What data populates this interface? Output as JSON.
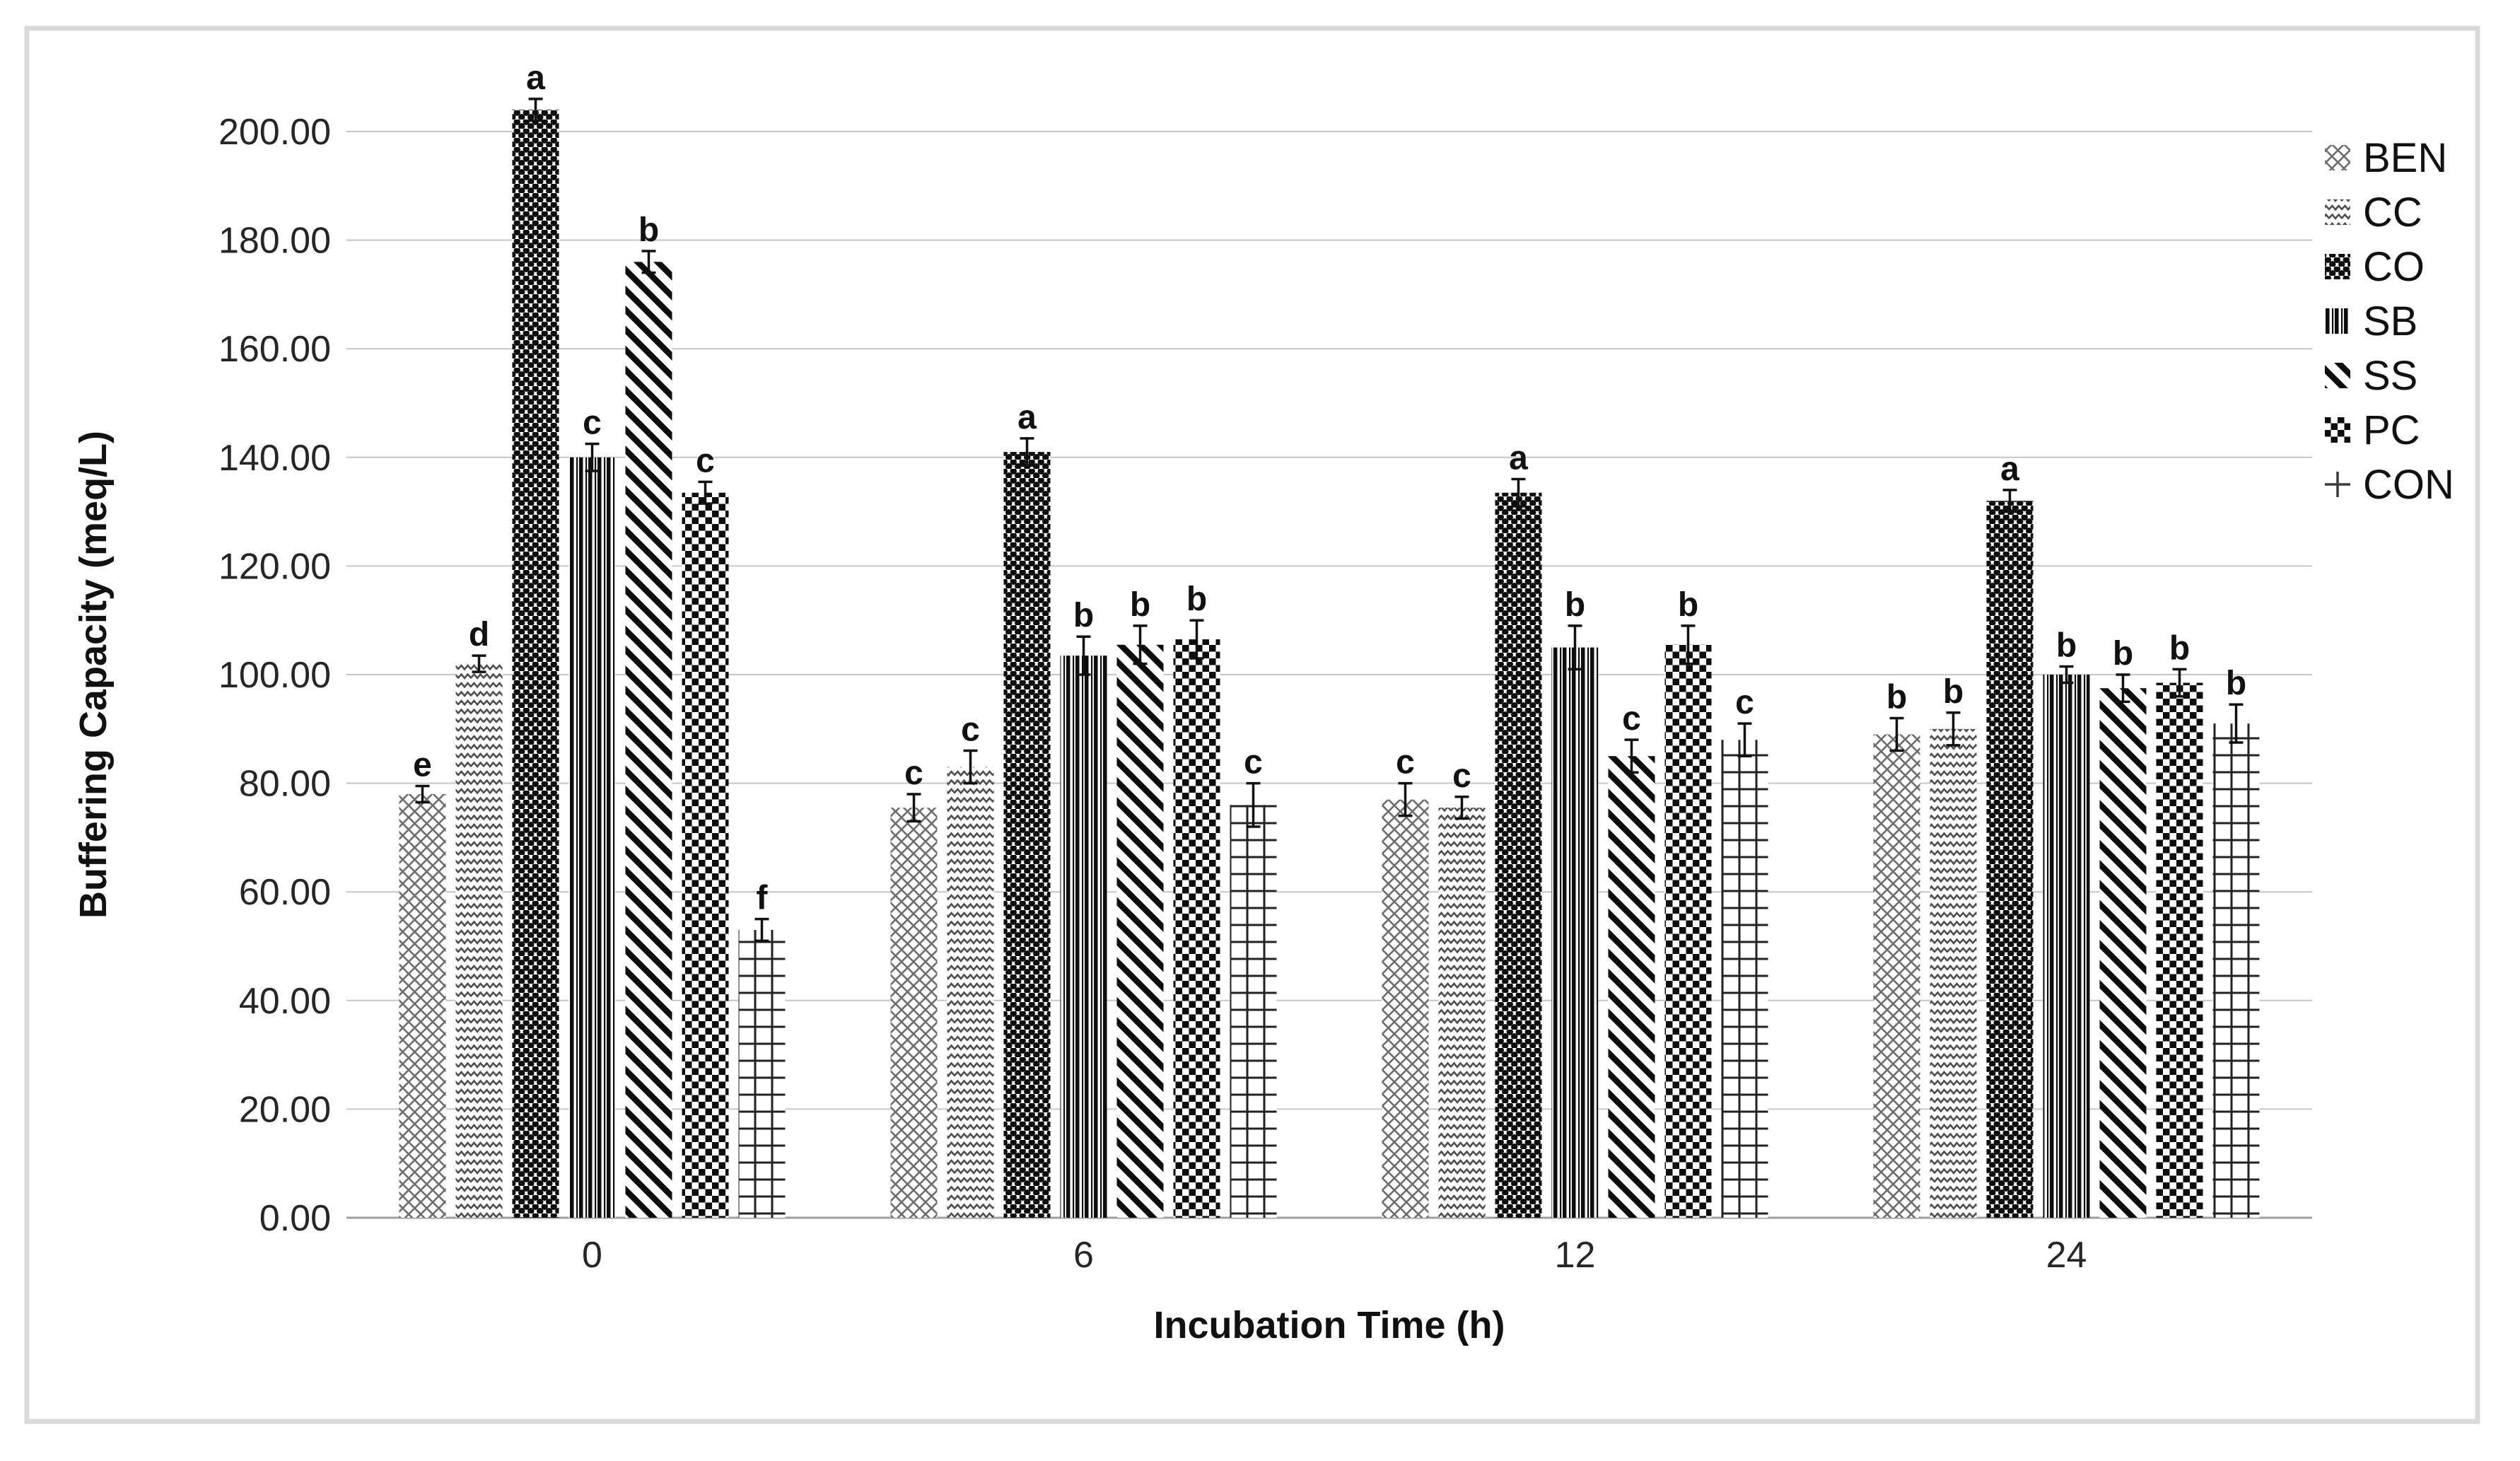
{
  "figure": {
    "border_color": "#d9d9d9",
    "background": "#ffffff"
  },
  "colors": {
    "pattern_ink": "#0d0d0d",
    "gray_pattern_ink": "#6e6e6e",
    "grid_line": "#c6c6c6",
    "axis_line": "#9e9e9e",
    "text": "#1a1a1a"
  },
  "chart_data": {
    "type": "bar",
    "title": "",
    "xlabel": "Incubation Time (h)",
    "ylabel": "Buffering Capacity (meq/L)",
    "categories": [
      "0",
      "6",
      "12",
      "24"
    ],
    "ylim": [
      0,
      200
    ],
    "ytick_step": 20,
    "yticks": [
      "0.00",
      "20.00",
      "40.00",
      "60.00",
      "80.00",
      "100.00",
      "120.00",
      "140.00",
      "160.00",
      "180.00",
      "200.00"
    ],
    "grid": true,
    "legend_position": "right",
    "error_bars": true,
    "series": [
      {
        "name": "BEN",
        "pattern": "crosshatch",
        "legend_icon": "crosshatch-swatch",
        "values": [
          78,
          75.5,
          77,
          89
        ],
        "errors": [
          1.5,
          2.5,
          3,
          3
        ],
        "letters": [
          "e",
          "c",
          "c",
          "b"
        ]
      },
      {
        "name": "CC",
        "pattern": "zigzag",
        "legend_icon": "zigzag-swatch",
        "values": [
          102,
          83,
          75.5,
          90
        ],
        "errors": [
          1.5,
          3,
          2,
          3
        ],
        "letters": [
          "d",
          "c",
          "c",
          "b"
        ]
      },
      {
        "name": "CO",
        "pattern": "balls",
        "legend_icon": "dark-balls-swatch",
        "values": [
          204,
          141,
          133.5,
          132
        ],
        "errors": [
          2,
          2.5,
          2.5,
          2
        ],
        "letters": [
          "a",
          "a",
          "a",
          "a"
        ]
      },
      {
        "name": "SB",
        "pattern": "vlines",
        "legend_icon": "vertical-lines-swatch",
        "values": [
          140,
          103.5,
          105,
          100
        ],
        "errors": [
          2.5,
          3.5,
          4,
          1.5
        ],
        "letters": [
          "c",
          "b",
          "b",
          "b"
        ]
      },
      {
        "name": "SS",
        "pattern": "diagonal",
        "legend_icon": "diagonal-stripes-swatch",
        "values": [
          176,
          105.5,
          85,
          97.5
        ],
        "errors": [
          2,
          3.5,
          3,
          2.5
        ],
        "letters": [
          "b",
          "b",
          "c",
          "b"
        ]
      },
      {
        "name": "PC",
        "pattern": "checker",
        "legend_icon": "checkerboard-swatch",
        "values": [
          133.5,
          106.5,
          105.5,
          98.5
        ],
        "errors": [
          2,
          3.5,
          3.5,
          2.5
        ],
        "letters": [
          "c",
          "b",
          "b",
          "b"
        ]
      },
      {
        "name": "CON",
        "pattern": "grid",
        "legend_icon": "plus-marker",
        "values": [
          53,
          76,
          88,
          91
        ],
        "errors": [
          2,
          4,
          3,
          3.5
        ],
        "letters": [
          "f",
          "c",
          "c",
          "b"
        ]
      }
    ]
  }
}
